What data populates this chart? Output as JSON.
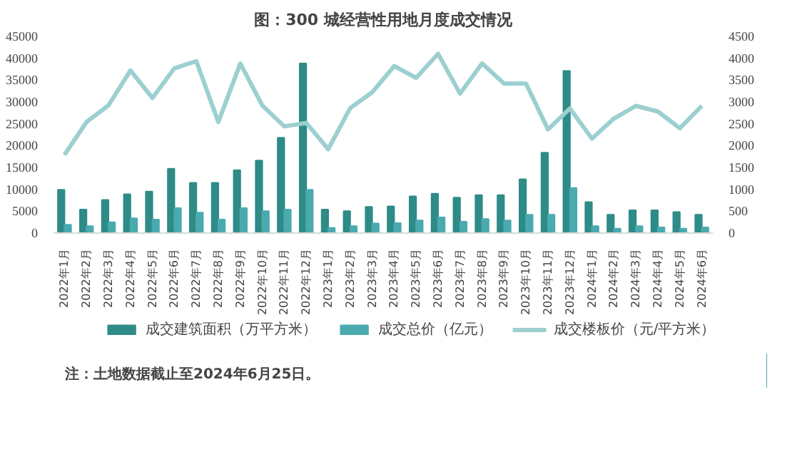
{
  "chart_data": {
    "type": "bar",
    "title": "图：300 城经营性用地月度成交情况",
    "categories": [
      "2022年1月",
      "2022年2月",
      "2022年3月",
      "2022年4月",
      "2022年5月",
      "2022年6月",
      "2022年7月",
      "2022年8月",
      "2022年9月",
      "2022年10月",
      "2022年11月",
      "2022年12月",
      "2023年1月",
      "2023年2月",
      "2023年3月",
      "2023年4月",
      "2023年5月",
      "2023年6月",
      "2023年7月",
      "2023年8月",
      "2023年9月",
      "2023年10月",
      "2023年11月",
      "2023年12月",
      "2024年1月",
      "2024年2月",
      "2024年3月",
      "2024年4月",
      "2024年5月",
      "2024年6月"
    ],
    "series": [
      {
        "name": "成交建筑面积（万平方米）",
        "color": "#2e8b87",
        "values": [
          9900,
          5400,
          7600,
          8900,
          9500,
          14700,
          11500,
          11500,
          14400,
          16600,
          21800,
          38800,
          5400,
          5000,
          6000,
          6100,
          8400,
          9000,
          8100,
          8700,
          8700,
          12300,
          18400,
          37100,
          7100,
          4200,
          5200,
          5200,
          4800,
          4200
        ]
      },
      {
        "name": "成交总价（亿元）",
        "color": "#4aaab0",
        "values": [
          1900,
          1600,
          2500,
          3400,
          3100,
          5700,
          4700,
          3100,
          5700,
          5000,
          5400,
          9900,
          1200,
          1600,
          2200,
          2300,
          2900,
          3600,
          2600,
          3200,
          2900,
          4200,
          4200,
          10300,
          1600,
          1000,
          1600,
          1300,
          1000,
          1300
        ]
      },
      {
        "name": "成交楼板价（元/平方米）",
        "type": "line",
        "axis": "y2",
        "color": "#9ccfd0",
        "values": [
          1790,
          2540,
          2920,
          3720,
          3090,
          3770,
          3930,
          2540,
          3880,
          2920,
          2440,
          2520,
          1920,
          2860,
          3220,
          3820,
          3550,
          4100,
          3190,
          3880,
          3420,
          3420,
          2370,
          2850,
          2160,
          2620,
          2910,
          2780,
          2400,
          2910
        ]
      }
    ],
    "ylim": [
      0,
      45000
    ],
    "yticks": [
      0,
      5000,
      10000,
      15000,
      20000,
      25000,
      30000,
      35000,
      40000,
      45000
    ],
    "y2lim": [
      0,
      4500
    ],
    "y2ticks": [
      0,
      500,
      1000,
      1500,
      2000,
      2500,
      3000,
      3500,
      4000,
      4500
    ],
    "legend": "bottom",
    "grid": false,
    "marker": "none",
    "line_style": "solid",
    "annotations": [
      "注：土地数据截止至2024年6月25日。"
    ]
  }
}
